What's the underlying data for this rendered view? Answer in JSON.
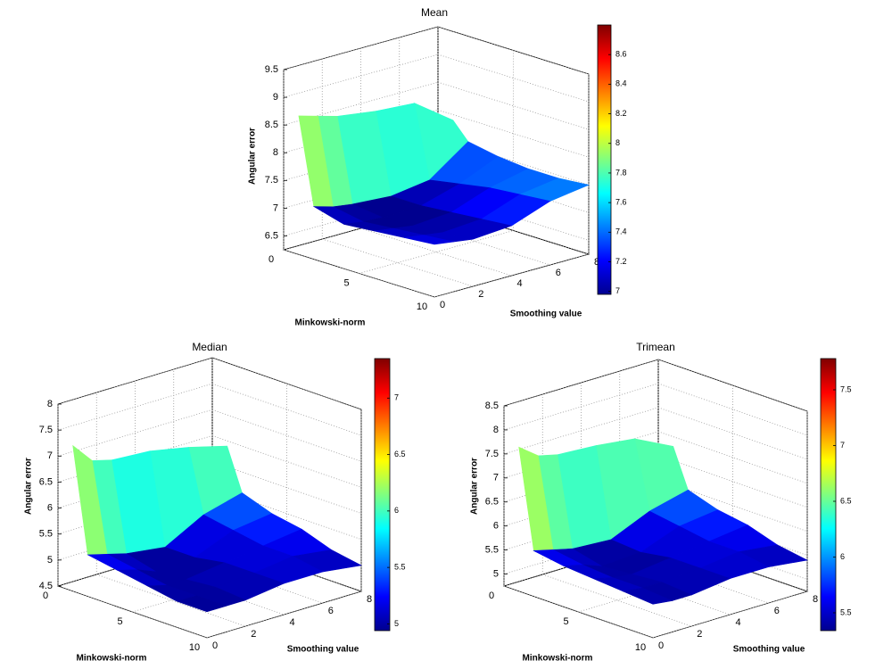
{
  "chart_data": [
    {
      "type": "surface",
      "title": "Mean",
      "xlabel": "Minkowski-norm",
      "ylabel": "Smoothing value",
      "zlabel": "Angular error",
      "colormap": "jet",
      "grid": true,
      "x": [
        1,
        2,
        4,
        6,
        8,
        10
      ],
      "y": [
        0,
        1,
        2,
        4,
        6,
        8
      ],
      "values": [
        [
          8.75,
          8.65,
          8.55,
          8.45,
          8.4,
          7.9
        ],
        [
          7.2,
          7.1,
          7.05,
          7.0,
          7.1,
          7.6
        ],
        [
          7.05,
          7.0,
          6.98,
          7.0,
          7.2,
          7.5
        ],
        [
          7.1,
          7.05,
          7.0,
          7.05,
          7.3,
          7.45
        ],
        [
          7.15,
          7.1,
          7.05,
          7.1,
          7.35,
          7.45
        ],
        [
          7.2,
          7.15,
          7.1,
          7.15,
          7.4,
          7.5
        ]
      ],
      "xlim": [
        0,
        10
      ],
      "ylim": [
        0,
        8
      ],
      "zlim": [
        6.25,
        9.5
      ],
      "xticks": [
        0,
        5,
        10
      ],
      "yticks": [
        0,
        2,
        4,
        6,
        8
      ],
      "zticks": [
        6.5,
        7,
        7.5,
        8,
        8.5,
        9,
        9.5
      ],
      "colorbar": {
        "clim": [
          6.98,
          8.8
        ],
        "ticks": [
          7,
          7.2,
          7.4,
          7.6,
          7.8,
          8,
          8.2,
          8.4,
          8.6
        ]
      }
    },
    {
      "type": "surface",
      "title": "Median",
      "xlabel": "Minkowski-norm",
      "ylabel": "Smoothing value",
      "zlabel": "Angular error",
      "colormap": "jet",
      "grid": true,
      "x": [
        1,
        2,
        4,
        6,
        8,
        10
      ],
      "y": [
        0,
        1,
        2,
        4,
        6,
        8
      ],
      "values": [
        [
          7.3,
          6.9,
          6.8,
          6.75,
          6.6,
          6.4
        ],
        [
          5.3,
          5.2,
          5.1,
          5.0,
          5.4,
          5.6
        ],
        [
          5.2,
          5.1,
          4.95,
          5.0,
          5.3,
          5.4
        ],
        [
          5.1,
          5.0,
          5.0,
          5.1,
          5.2,
          5.3
        ],
        [
          5.0,
          5.0,
          5.05,
          5.1,
          5.2,
          5.1
        ],
        [
          5.0,
          5.0,
          5.0,
          5.1,
          5.1,
          5.0
        ]
      ],
      "xlim": [
        0,
        10
      ],
      "ylim": [
        0,
        8
      ],
      "zlim": [
        4.5,
        8
      ],
      "xticks": [
        0,
        5,
        10
      ],
      "yticks": [
        0,
        2,
        4,
        6,
        8
      ],
      "zticks": [
        4.5,
        5,
        5.5,
        6,
        6.5,
        7,
        7.5,
        8
      ],
      "colorbar": {
        "clim": [
          4.94,
          7.35
        ],
        "ticks": [
          5,
          5.5,
          6,
          6.5,
          7
        ]
      }
    },
    {
      "type": "surface",
      "title": "Trimean",
      "xlabel": "Minkowski-norm",
      "ylabel": "Smoothing value",
      "zlabel": "Angular error",
      "colormap": "jet",
      "grid": true,
      "x": [
        1,
        2,
        4,
        6,
        8,
        10
      ],
      "y": [
        0,
        1,
        2,
        4,
        6,
        8
      ],
      "values": [
        [
          7.75,
          7.45,
          7.35,
          7.3,
          7.2,
          6.8
        ],
        [
          5.7,
          5.6,
          5.5,
          5.45,
          5.8,
          6.0
        ],
        [
          5.6,
          5.5,
          5.35,
          5.4,
          5.7,
          5.8
        ],
        [
          5.55,
          5.45,
          5.4,
          5.5,
          5.6,
          5.7
        ],
        [
          5.5,
          5.45,
          5.45,
          5.5,
          5.6,
          5.5
        ],
        [
          5.45,
          5.4,
          5.4,
          5.5,
          5.5,
          5.4
        ]
      ],
      "xlim": [
        0,
        10
      ],
      "ylim": [
        0,
        8
      ],
      "zlim": [
        4.75,
        8.5
      ],
      "xticks": [
        0,
        5,
        10
      ],
      "yticks": [
        0,
        2,
        4,
        6,
        8
      ],
      "zticks": [
        5,
        5.5,
        6,
        6.5,
        7,
        7.5,
        8,
        8.5
      ],
      "colorbar": {
        "clim": [
          5.34,
          7.78
        ],
        "ticks": [
          5.5,
          6,
          6.5,
          7,
          7.5
        ]
      }
    }
  ]
}
